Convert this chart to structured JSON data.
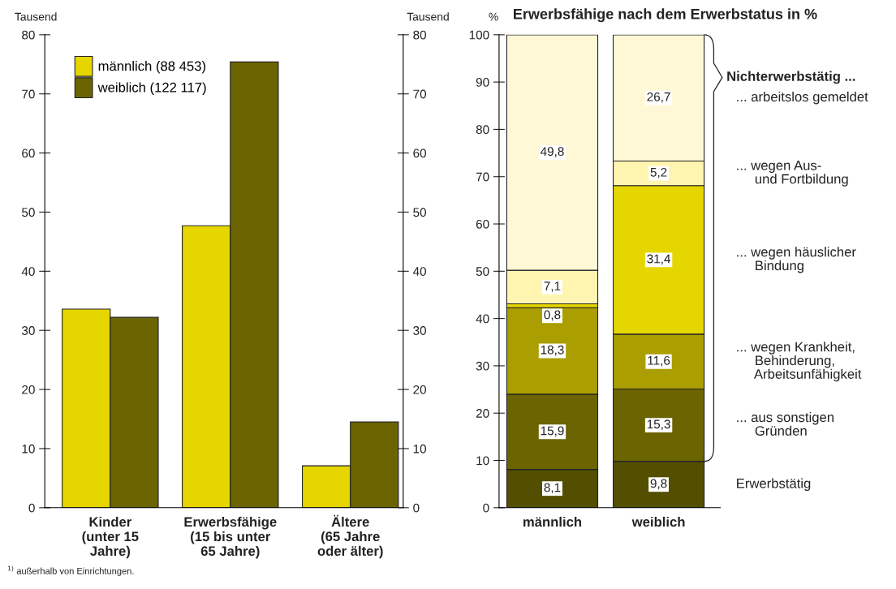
{
  "chart_data": [
    {
      "type": "bar",
      "ylabel": "Tausend",
      "y2label": "Tausend",
      "categories": [
        "Kinder\n(unter 15\nJahre)",
        "Erwerbsfähige\n(15 bis unter\n65 Jahre)",
        "Ältere\n(65 Jahre\noder älter)"
      ],
      "series": [
        {
          "name": "männlich (88 453)",
          "color": "#e6d600",
          "values": [
            33.6,
            47.7,
            7.1
          ]
        },
        {
          "name": "weiblich (122 117)",
          "color": "#6b6400",
          "values": [
            32.2,
            75.4,
            14.5
          ]
        }
      ],
      "ylim": [
        0,
        80
      ],
      "yticks": [
        0,
        10,
        20,
        30,
        40,
        50,
        60,
        70,
        80
      ],
      "y2lim": [
        0,
        80
      ],
      "y2ticks": [
        0,
        10,
        20,
        30,
        40,
        50,
        60,
        70,
        80
      ],
      "legend": "top left",
      "grid": false,
      "annotations": [
        "$^{1)}$ außerhalb von Einrichtungen."
      ]
    },
    {
      "type": "bar",
      "title": "Erwerbsfähige nach dem Erwerbstatus in %",
      "ylabel": "%",
      "categories": [
        "männlich",
        "weiblich"
      ],
      "stacked": true,
      "series": [
        {
          "name": "Erwerbstätig",
          "color": "#534e00",
          "values": [
            8.1,
            9.8
          ],
          "value_labels": [
            "8,1",
            "9,8"
          ]
        },
        {
          "name": "... aus sonstigen\n     Gründen",
          "color": "#6b6400",
          "values": [
            15.9,
            15.3
          ],
          "value_labels": [
            "15,9",
            "15,3"
          ]
        },
        {
          "name": "... wegen Krankheit,\n     Behinderung,\n     Arbeitsunfähigkeit",
          "color": "#aa9e00",
          "values": [
            18.3,
            11.6
          ],
          "value_labels": [
            "18,3",
            "11,6"
          ]
        },
        {
          "name": "... wegen häuslicher\n     Bindung",
          "color": "#e6d600",
          "values": [
            0.8,
            31.4
          ],
          "value_labels": [
            "0,8",
            "31,4"
          ]
        },
        {
          "name": "... wegen Aus-\n     und Fortbildung",
          "color": "#fff5b0",
          "values": [
            7.1,
            5.2
          ],
          "value_labels": [
            "7,1",
            "5,2"
          ]
        },
        {
          "name": "... arbeitslos gemeldet",
          "color": "#fff8d6",
          "values": [
            49.8,
            26.7
          ],
          "value_labels": [
            "49,8",
            "26,7"
          ]
        }
      ],
      "ylim": [
        0,
        100
      ],
      "yticks": [
        0,
        10,
        20,
        30,
        40,
        50,
        60,
        70,
        80,
        90,
        100
      ],
      "grid": false,
      "legend": false,
      "annotations": [
        "Nichterwerbstätig ..."
      ]
    }
  ]
}
